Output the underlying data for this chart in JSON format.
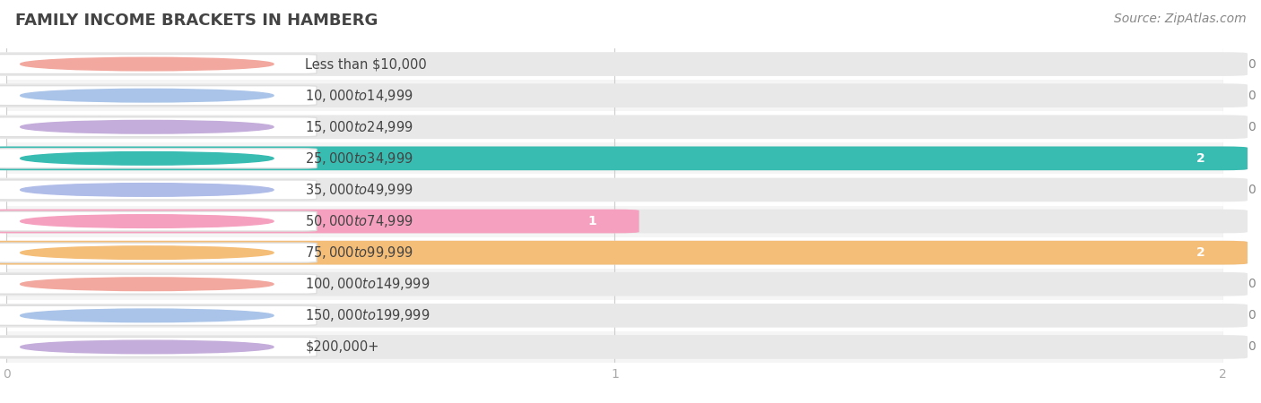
{
  "title": "FAMILY INCOME BRACKETS IN HAMBERG",
  "source": "Source: ZipAtlas.com",
  "categories": [
    "Less than $10,000",
    "$10,000 to $14,999",
    "$15,000 to $24,999",
    "$25,000 to $34,999",
    "$35,000 to $49,999",
    "$50,000 to $74,999",
    "$75,000 to $99,999",
    "$100,000 to $149,999",
    "$150,000 to $199,999",
    "$200,000+"
  ],
  "values": [
    0,
    0,
    0,
    2,
    0,
    1,
    2,
    0,
    0,
    0
  ],
  "bar_colors": [
    "#F2A89E",
    "#A9C4E8",
    "#C4ADDA",
    "#38BCB2",
    "#B0BCE8",
    "#F5A0BE",
    "#F5BE78",
    "#F2A89E",
    "#A9C4E8",
    "#C4ADDA"
  ],
  "xlim": [
    0,
    2
  ],
  "xticks": [
    0,
    1,
    2
  ],
  "background_color": "#ffffff",
  "row_bg_color": "#f5f5f5",
  "bar_bg_color": "#e8e8e8",
  "title_fontsize": 13,
  "source_fontsize": 10,
  "label_fontsize": 10.5,
  "value_fontsize": 10
}
